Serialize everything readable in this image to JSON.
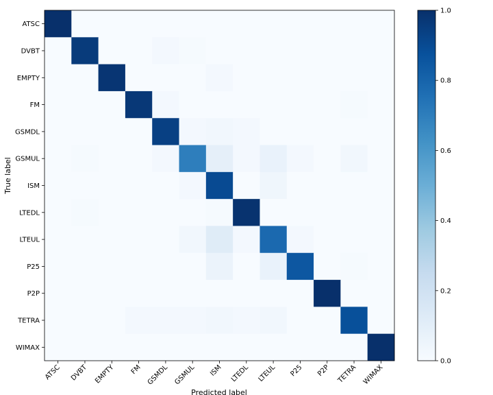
{
  "chart_data": {
    "type": "heatmap",
    "title": "",
    "xlabel": "Predicted label",
    "ylabel": "True label",
    "labels": [
      "ATSC",
      "DVBT",
      "EMPTY",
      "FM",
      "GSMDL",
      "GSMUL",
      "ISM",
      "LTEDL",
      "LTEUL",
      "P25",
      "P2P",
      "TETRA",
      "WIMAX"
    ],
    "matrix": [
      [
        1.0,
        0.0,
        0.0,
        0.0,
        0.0,
        0.0,
        0.0,
        0.0,
        0.0,
        0.0,
        0.0,
        0.0,
        0.0
      ],
      [
        0.0,
        0.96,
        0.0,
        0.0,
        0.02,
        0.01,
        0.0,
        0.0,
        0.0,
        0.0,
        0.0,
        0.0,
        0.0
      ],
      [
        0.0,
        0.0,
        0.98,
        0.0,
        0.0,
        0.0,
        0.02,
        0.0,
        0.0,
        0.0,
        0.0,
        0.0,
        0.0
      ],
      [
        0.0,
        0.0,
        0.0,
        0.97,
        0.02,
        0.0,
        0.0,
        0.0,
        0.0,
        0.0,
        0.0,
        0.01,
        0.0
      ],
      [
        0.0,
        0.0,
        0.0,
        0.0,
        0.94,
        0.02,
        0.03,
        0.02,
        0.0,
        0.0,
        0.0,
        0.0,
        0.0
      ],
      [
        0.0,
        0.01,
        0.0,
        0.0,
        0.02,
        0.7,
        0.09,
        0.02,
        0.07,
        0.02,
        0.0,
        0.03,
        0.0
      ],
      [
        0.0,
        0.0,
        0.0,
        0.0,
        0.0,
        0.02,
        0.9,
        0.0,
        0.04,
        0.0,
        0.0,
        0.0,
        0.0
      ],
      [
        0.0,
        0.01,
        0.0,
        0.0,
        0.0,
        0.0,
        0.01,
        0.99,
        0.0,
        0.0,
        0.0,
        0.0,
        0.0
      ],
      [
        0.0,
        0.0,
        0.0,
        0.0,
        0.0,
        0.03,
        0.12,
        0.02,
        0.78,
        0.02,
        0.0,
        0.0,
        0.0
      ],
      [
        0.0,
        0.0,
        0.0,
        0.0,
        0.0,
        0.0,
        0.06,
        0.0,
        0.07,
        0.85,
        0.0,
        0.01,
        0.0
      ],
      [
        0.0,
        0.0,
        0.0,
        0.0,
        0.0,
        0.0,
        0.0,
        0.0,
        0.0,
        0.0,
        1.0,
        0.0,
        0.0
      ],
      [
        0.0,
        0.0,
        0.0,
        0.02,
        0.02,
        0.02,
        0.03,
        0.02,
        0.03,
        0.0,
        0.0,
        0.88,
        0.0
      ],
      [
        0.0,
        0.0,
        0.0,
        0.0,
        0.0,
        0.0,
        0.0,
        0.0,
        0.0,
        0.0,
        0.0,
        0.0,
        1.0
      ]
    ],
    "colormap": "Blues",
    "colorbar": {
      "ticks": [
        "0.0",
        "0.2",
        "0.4",
        "0.6",
        "0.8",
        "1.0"
      ],
      "range": [
        0,
        1
      ]
    },
    "grid": false
  }
}
